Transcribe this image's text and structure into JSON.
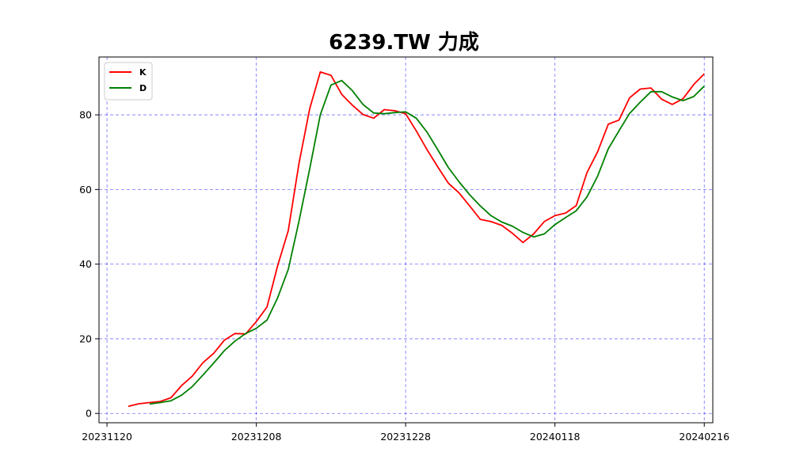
{
  "chart_data": {
    "type": "line",
    "title": "6239.TW 力成",
    "xlabel": "",
    "ylabel": "",
    "x_tick_labels": [
      "20231120",
      "20231208",
      "20231228",
      "20240118",
      "20240216"
    ],
    "y_ticks": [
      0,
      20,
      40,
      60,
      80
    ],
    "ylim": [
      -2.5,
      95.5
    ],
    "xlim": [
      -0.75,
      56.8
    ],
    "grid": true,
    "grid_style": "dashed",
    "legend_position": "top-left",
    "series": [
      {
        "name": "K",
        "color": "#ff0000",
        "start_index": 2,
        "values": [
          1.9,
          2.6,
          2.9,
          3.2,
          4.2,
          7.5,
          10.0,
          13.6,
          16.1,
          19.6,
          21.4,
          21.3,
          24.6,
          28.5,
          39.6,
          49.0,
          67.0,
          81.6,
          91.5,
          90.6,
          85.5,
          82.6,
          80.1,
          79.1,
          81.4,
          81.1,
          80.3,
          75.7,
          70.7,
          66.1,
          61.7,
          59.1,
          55.6,
          52.0,
          51.4,
          50.4,
          48.3,
          45.8,
          48.1,
          51.4,
          53.0,
          53.7,
          55.7,
          64.5,
          70.1,
          77.5,
          78.6,
          84.6,
          86.9,
          87.2,
          84.2,
          82.8,
          84.3,
          88.1,
          91.0
        ]
      },
      {
        "name": "D",
        "color": "#008000",
        "start_index": 4,
        "values": [
          2.5,
          2.9,
          3.4,
          4.9,
          7.2,
          10.3,
          13.5,
          16.8,
          19.4,
          21.4,
          22.8,
          25.0,
          31.0,
          38.6,
          51.5,
          65.5,
          80.0,
          88.0,
          89.2,
          86.5,
          82.8,
          80.5,
          80.3,
          80.6,
          80.8,
          79.1,
          75.4,
          70.7,
          65.9,
          62.1,
          58.6,
          55.6,
          53.0,
          51.3,
          50.2,
          48.5,
          47.3,
          48.1,
          50.6,
          52.5,
          54.3,
          58.0,
          63.6,
          70.9,
          75.7,
          80.4,
          83.4,
          86.2,
          86.2,
          84.8,
          83.8,
          84.9,
          87.7
        ]
      }
    ]
  }
}
